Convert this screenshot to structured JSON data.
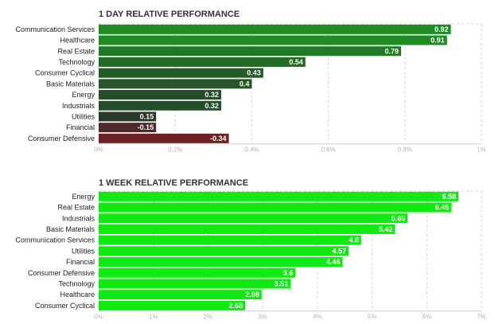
{
  "chart_data": [
    {
      "type": "bar",
      "orientation": "horizontal",
      "title": "1 DAY RELATIVE PERFORMANCE",
      "xlabel": "",
      "ylabel": "",
      "xlim": [
        0,
        1
      ],
      "x_ticks": [
        0,
        0.2,
        0.4,
        0.6,
        0.8,
        1
      ],
      "x_tick_labels": [
        "0%",
        "0.2%",
        "0.4%",
        "0.6%",
        "0.8%",
        "1%"
      ],
      "grid": "vertical dashed",
      "legend": "none",
      "categories": [
        "Communication Services",
        "Healthcare",
        "Real Estate",
        "Technology",
        "Consumer Cyclical",
        "Basic Materials",
        "Energy",
        "Industrials",
        "Utilities",
        "Financial",
        "Consumer Defensive"
      ],
      "values": [
        0.92,
        0.91,
        0.79,
        0.54,
        0.43,
        0.4,
        0.32,
        0.32,
        0.15,
        -0.15,
        -0.34
      ],
      "value_labels": [
        "0.92",
        "0.91",
        "0.79",
        "0.54",
        "0.43",
        "0.4",
        "0.32",
        "0.32",
        "0.15",
        "-0.15",
        "-0.34"
      ],
      "colors": [
        "#1e8c21",
        "#1e8c21",
        "#1f7b22",
        "#226a25",
        "#245b27",
        "#255828",
        "#254d29",
        "#254d29",
        "#28392a",
        "#4e2a2a",
        "#6a2225"
      ]
    },
    {
      "type": "bar",
      "orientation": "horizontal",
      "title": "1 WEEK RELATIVE PERFORMANCE",
      "xlabel": "",
      "ylabel": "",
      "xlim": [
        0,
        7
      ],
      "x_ticks": [
        0,
        1,
        2,
        3,
        4,
        5,
        6,
        7
      ],
      "x_tick_labels": [
        "0%",
        "1%",
        "2%",
        "3%",
        "4%",
        "5%",
        "6%",
        "7%"
      ],
      "grid": "vertical dashed",
      "legend": "none",
      "categories": [
        "Energy",
        "Real Estate",
        "Industrials",
        "Basic Materials",
        "Communication Services",
        "Utilities",
        "Financial",
        "Consumer Defensive",
        "Technology",
        "Healthcare",
        "Consumer Cyclical"
      ],
      "values": [
        6.58,
        6.45,
        5.65,
        5.42,
        4.8,
        4.57,
        4.46,
        3.6,
        3.51,
        2.98,
        2.68
      ],
      "value_labels": [
        "6.58",
        "6.45",
        "5.65",
        "5.42",
        "4.8",
        "4.57",
        "4.46",
        "3.6",
        "3.51",
        "2.98",
        "2.68"
      ],
      "colors": [
        "#12e912",
        "#12e912",
        "#12e912",
        "#12e912",
        "#12e912",
        "#12e912",
        "#12e912",
        "#12e912",
        "#12e912",
        "#12e912",
        "#12e912"
      ]
    }
  ]
}
